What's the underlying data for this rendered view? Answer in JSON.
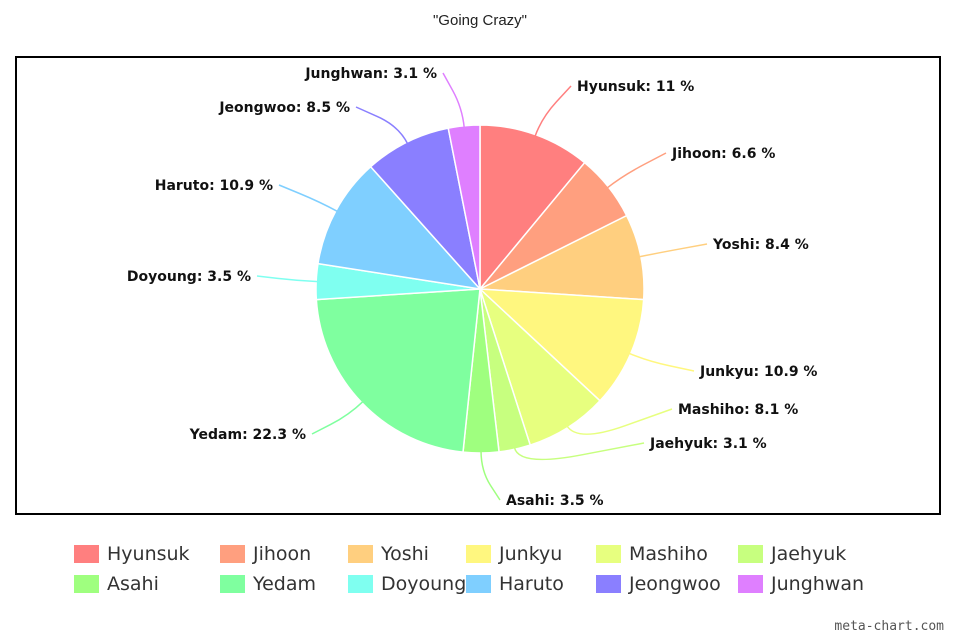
{
  "chart_data": {
    "type": "pie",
    "title": "\"Going Crazy\"",
    "slices": [
      {
        "name": "Hyunsuk",
        "value": 11,
        "label": "Hyunsuk: 11 %",
        "color": "#ff7f7f"
      },
      {
        "name": "Jihoon",
        "value": 6.6,
        "label": "Jihoon: 6.6 %",
        "color": "#ff9f7f"
      },
      {
        "name": "Yoshi",
        "value": 8.4,
        "label": "Yoshi: 8.4 %",
        "color": "#ffcf7f"
      },
      {
        "name": "Junkyu",
        "value": 10.9,
        "label": "Junkyu: 10.9 %",
        "color": "#fff77f"
      },
      {
        "name": "Mashiho",
        "value": 8.1,
        "label": "Mashiho: 8.1 %",
        "color": "#e7ff7f"
      },
      {
        "name": "Jaehyuk",
        "value": 3.1,
        "label": "Jaehyuk: 3.1 %",
        "color": "#c7ff7f"
      },
      {
        "name": "Asahi",
        "value": 3.5,
        "label": "Asahi: 3.5 %",
        "color": "#9fff7f"
      },
      {
        "name": "Yedam",
        "value": 22.3,
        "label": "Yedam: 22.3 %",
        "color": "#7fff9f"
      },
      {
        "name": "Doyoung",
        "value": 3.5,
        "label": "Doyoung: 3.5 %",
        "color": "#7ffff0"
      },
      {
        "name": "Haruto",
        "value": 10.9,
        "label": "Haruto: 10.9 %",
        "color": "#7fcfff"
      },
      {
        "name": "Jeongwoo",
        "value": 8.5,
        "label": "Jeongwoo: 8.5 %",
        "color": "#8a7fff"
      },
      {
        "name": "Junghwan",
        "value": 3.1,
        "label": "Junghwan: 3.1 %",
        "color": "#df7fff"
      }
    ],
    "legend": {
      "position": "bottom"
    }
  },
  "watermark": "meta-chart.com"
}
